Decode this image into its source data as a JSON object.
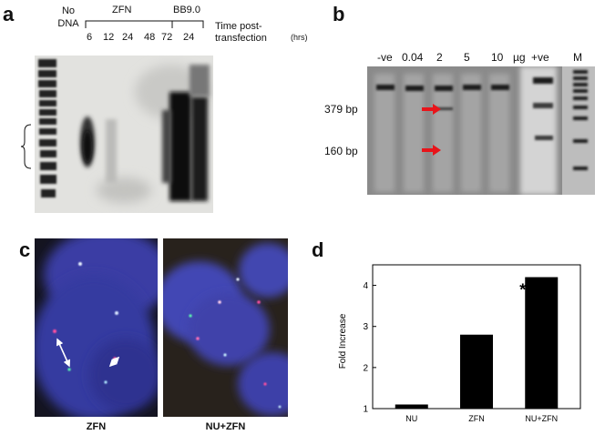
{
  "panel_a": {
    "letter": "a",
    "no_dna": "No\nDNA",
    "group_zfn": "ZFN",
    "group_bb": "BB9.0",
    "time_labels_zfn": [
      "6",
      "12",
      "24",
      "48",
      "72"
    ],
    "time_label_bb": "24",
    "axis_title": "Time post-\ntransfection",
    "axis_unit": "(hrs)"
  },
  "panel_b": {
    "letter": "b",
    "lane_labels": [
      "-ve",
      "0.04",
      "2",
      "5",
      "10",
      "µg",
      "+ve",
      "M"
    ],
    "band_labels": [
      "379 bp",
      "160 bp"
    ],
    "arrow_color": "#e8141a"
  },
  "panel_c": {
    "letter": "c",
    "captions": [
      "ZFN",
      "NU+ZFN"
    ]
  },
  "panel_d": {
    "letter": "d",
    "significance": "**"
  },
  "chart_data": {
    "type": "bar",
    "categories": [
      "NU",
      "ZFN",
      "NU+ZFN"
    ],
    "values": [
      1.1,
      2.8,
      4.2
    ],
    "ylabel": "Fold Increase",
    "ylim": [
      1,
      4.5
    ],
    "yticks": [
      1,
      2,
      3,
      4
    ],
    "bar_color": "#000000",
    "annotation": {
      "category": "NU+ZFN",
      "text": "**"
    }
  }
}
